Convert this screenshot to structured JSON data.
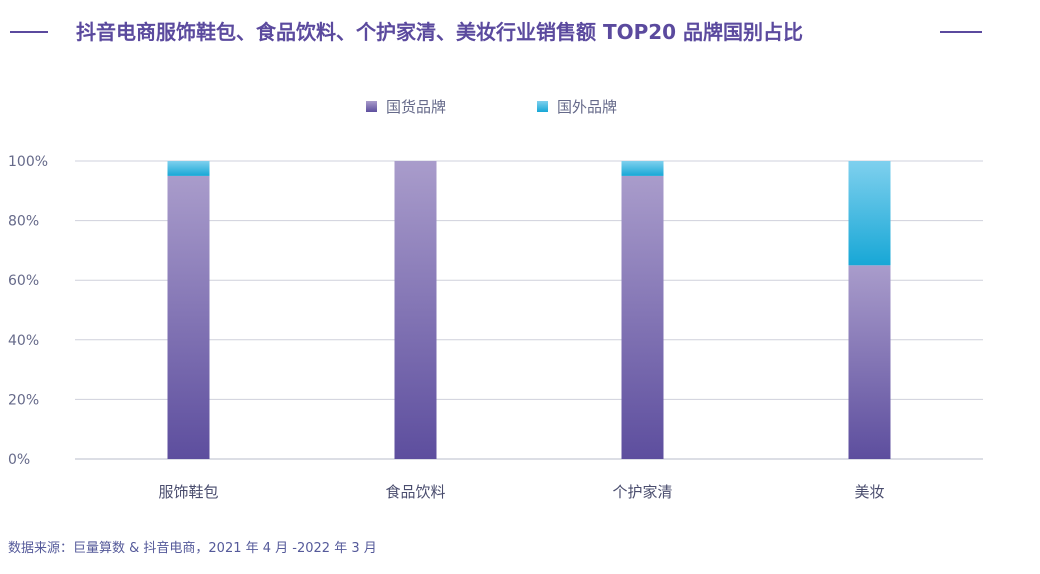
{
  "title": "抖音电商服饰鞋包、食品饮料、个护家清、美妆行业销售额 TOP20 品牌国别占比",
  "source": "数据来源：巨量算数 & 抖音电商，2021 年 4 月 -2022 年 3 月",
  "colors": {
    "title": "#5b4a9e",
    "domestic_top": "#a99ccb",
    "domestic_bottom": "#5d4e9e",
    "foreign_top": "#7fd0ee",
    "foreign_bottom": "#17a7d6",
    "axis_text": "#666a8a",
    "grid": "#cfd1dc"
  },
  "chart_data": {
    "type": "bar",
    "stacked": true,
    "categories": [
      "服饰鞋包",
      "食品饮料",
      "个护家清",
      "美妆"
    ],
    "series": [
      {
        "name": "国货品牌",
        "values": [
          95,
          100,
          95,
          65
        ],
        "color": "#7a6bb0"
      },
      {
        "name": "国外品牌",
        "values": [
          5,
          0,
          5,
          35
        ],
        "color": "#23b0dd"
      }
    ],
    "ylim": [
      0,
      100
    ],
    "yticks": [
      "0%",
      "20%",
      "40%",
      "60%",
      "80%",
      "100%"
    ],
    "grid": true,
    "legend_position": "top-center"
  }
}
